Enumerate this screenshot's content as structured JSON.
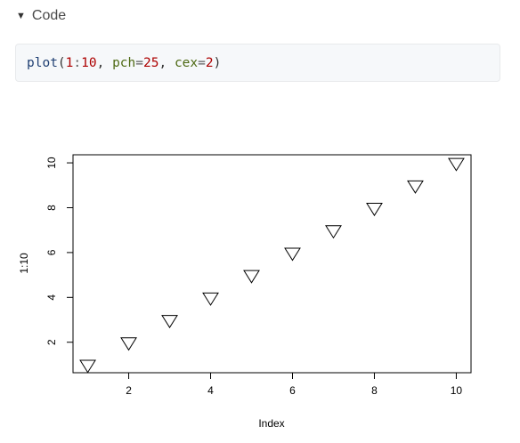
{
  "code_toggle": {
    "icon": "triangle-down-icon",
    "label": "Code"
  },
  "code": {
    "fn": "plot",
    "open": "(",
    "from": "1",
    "colon": ":",
    "to": "10",
    "comma1": ", ",
    "arg1_name": "pch",
    "eq1": "=",
    "arg1_value": "25",
    "comma2": ", ",
    "arg2_name": "cex",
    "eq2": "=",
    "arg2_value": "2",
    "close": ")"
  },
  "chart_data": {
    "type": "scatter",
    "marker": "triangle-down",
    "x": [
      1,
      2,
      3,
      4,
      5,
      6,
      7,
      8,
      9,
      10
    ],
    "y": [
      1,
      2,
      3,
      4,
      5,
      6,
      7,
      8,
      9,
      10
    ],
    "xlabel": "Index",
    "ylabel": "1:10",
    "xlim": [
      0.64,
      10.36
    ],
    "ylim": [
      0.64,
      10.36
    ],
    "xticks": [
      2,
      4,
      6,
      8,
      10
    ],
    "yticks": [
      2,
      4,
      6,
      8,
      10
    ],
    "grid": false
  }
}
